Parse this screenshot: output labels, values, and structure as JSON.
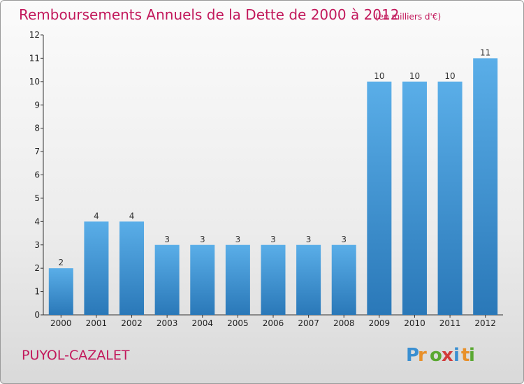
{
  "chart_data": {
    "type": "bar",
    "title": "Remboursements Annuels de la Dette de 2000 à 2012",
    "subtitle": "(en milliers d'€)",
    "categories": [
      "2000",
      "2001",
      "2002",
      "2003",
      "2004",
      "2005",
      "2006",
      "2007",
      "2008",
      "2009",
      "2010",
      "2011",
      "2012"
    ],
    "values": [
      2,
      4,
      4,
      3,
      3,
      3,
      3,
      3,
      3,
      10,
      10,
      10,
      11
    ],
    "yticks": [
      0,
      1,
      2,
      3,
      4,
      5,
      6,
      7,
      8,
      9,
      10,
      11,
      12
    ],
    "ylim": [
      0,
      12
    ],
    "grid": false,
    "bar_color": "#3d94d6"
  },
  "footer": {
    "commune": "PUYOL-CAZALET",
    "logo": "Proxiti"
  }
}
